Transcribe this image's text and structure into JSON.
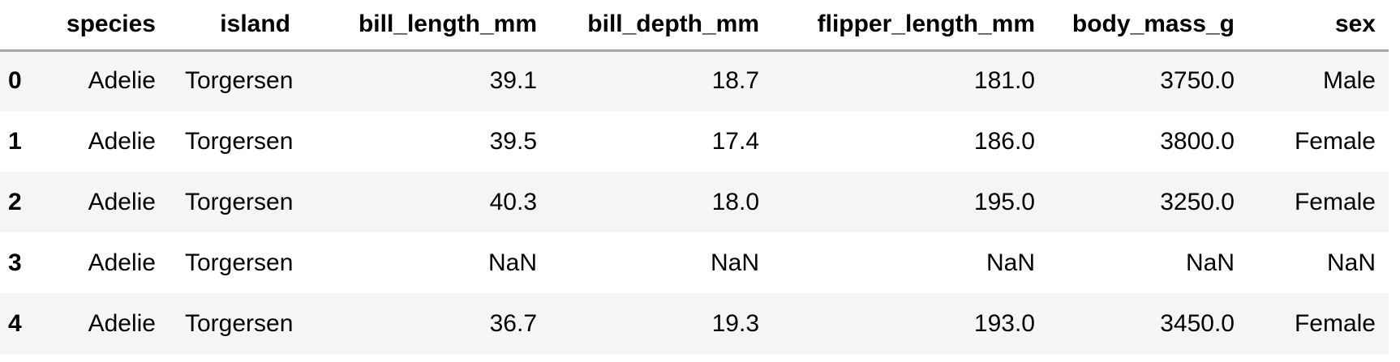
{
  "table": {
    "columns": [
      "",
      "species",
      "island",
      "bill_length_mm",
      "bill_depth_mm",
      "flipper_length_mm",
      "body_mass_g",
      "sex"
    ],
    "rows": [
      [
        "0",
        "Adelie",
        "Torgersen",
        "39.1",
        "18.7",
        "181.0",
        "3750.0",
        "Male"
      ],
      [
        "1",
        "Adelie",
        "Torgersen",
        "39.5",
        "17.4",
        "186.0",
        "3800.0",
        "Female"
      ],
      [
        "2",
        "Adelie",
        "Torgersen",
        "40.3",
        "18.0",
        "195.0",
        "3250.0",
        "Female"
      ],
      [
        "3",
        "Adelie",
        "Torgersen",
        "NaN",
        "NaN",
        "NaN",
        "NaN",
        "NaN"
      ],
      [
        "4",
        "Adelie",
        "Torgersen",
        "36.7",
        "19.3",
        "193.0",
        "3450.0",
        "Female"
      ]
    ]
  }
}
